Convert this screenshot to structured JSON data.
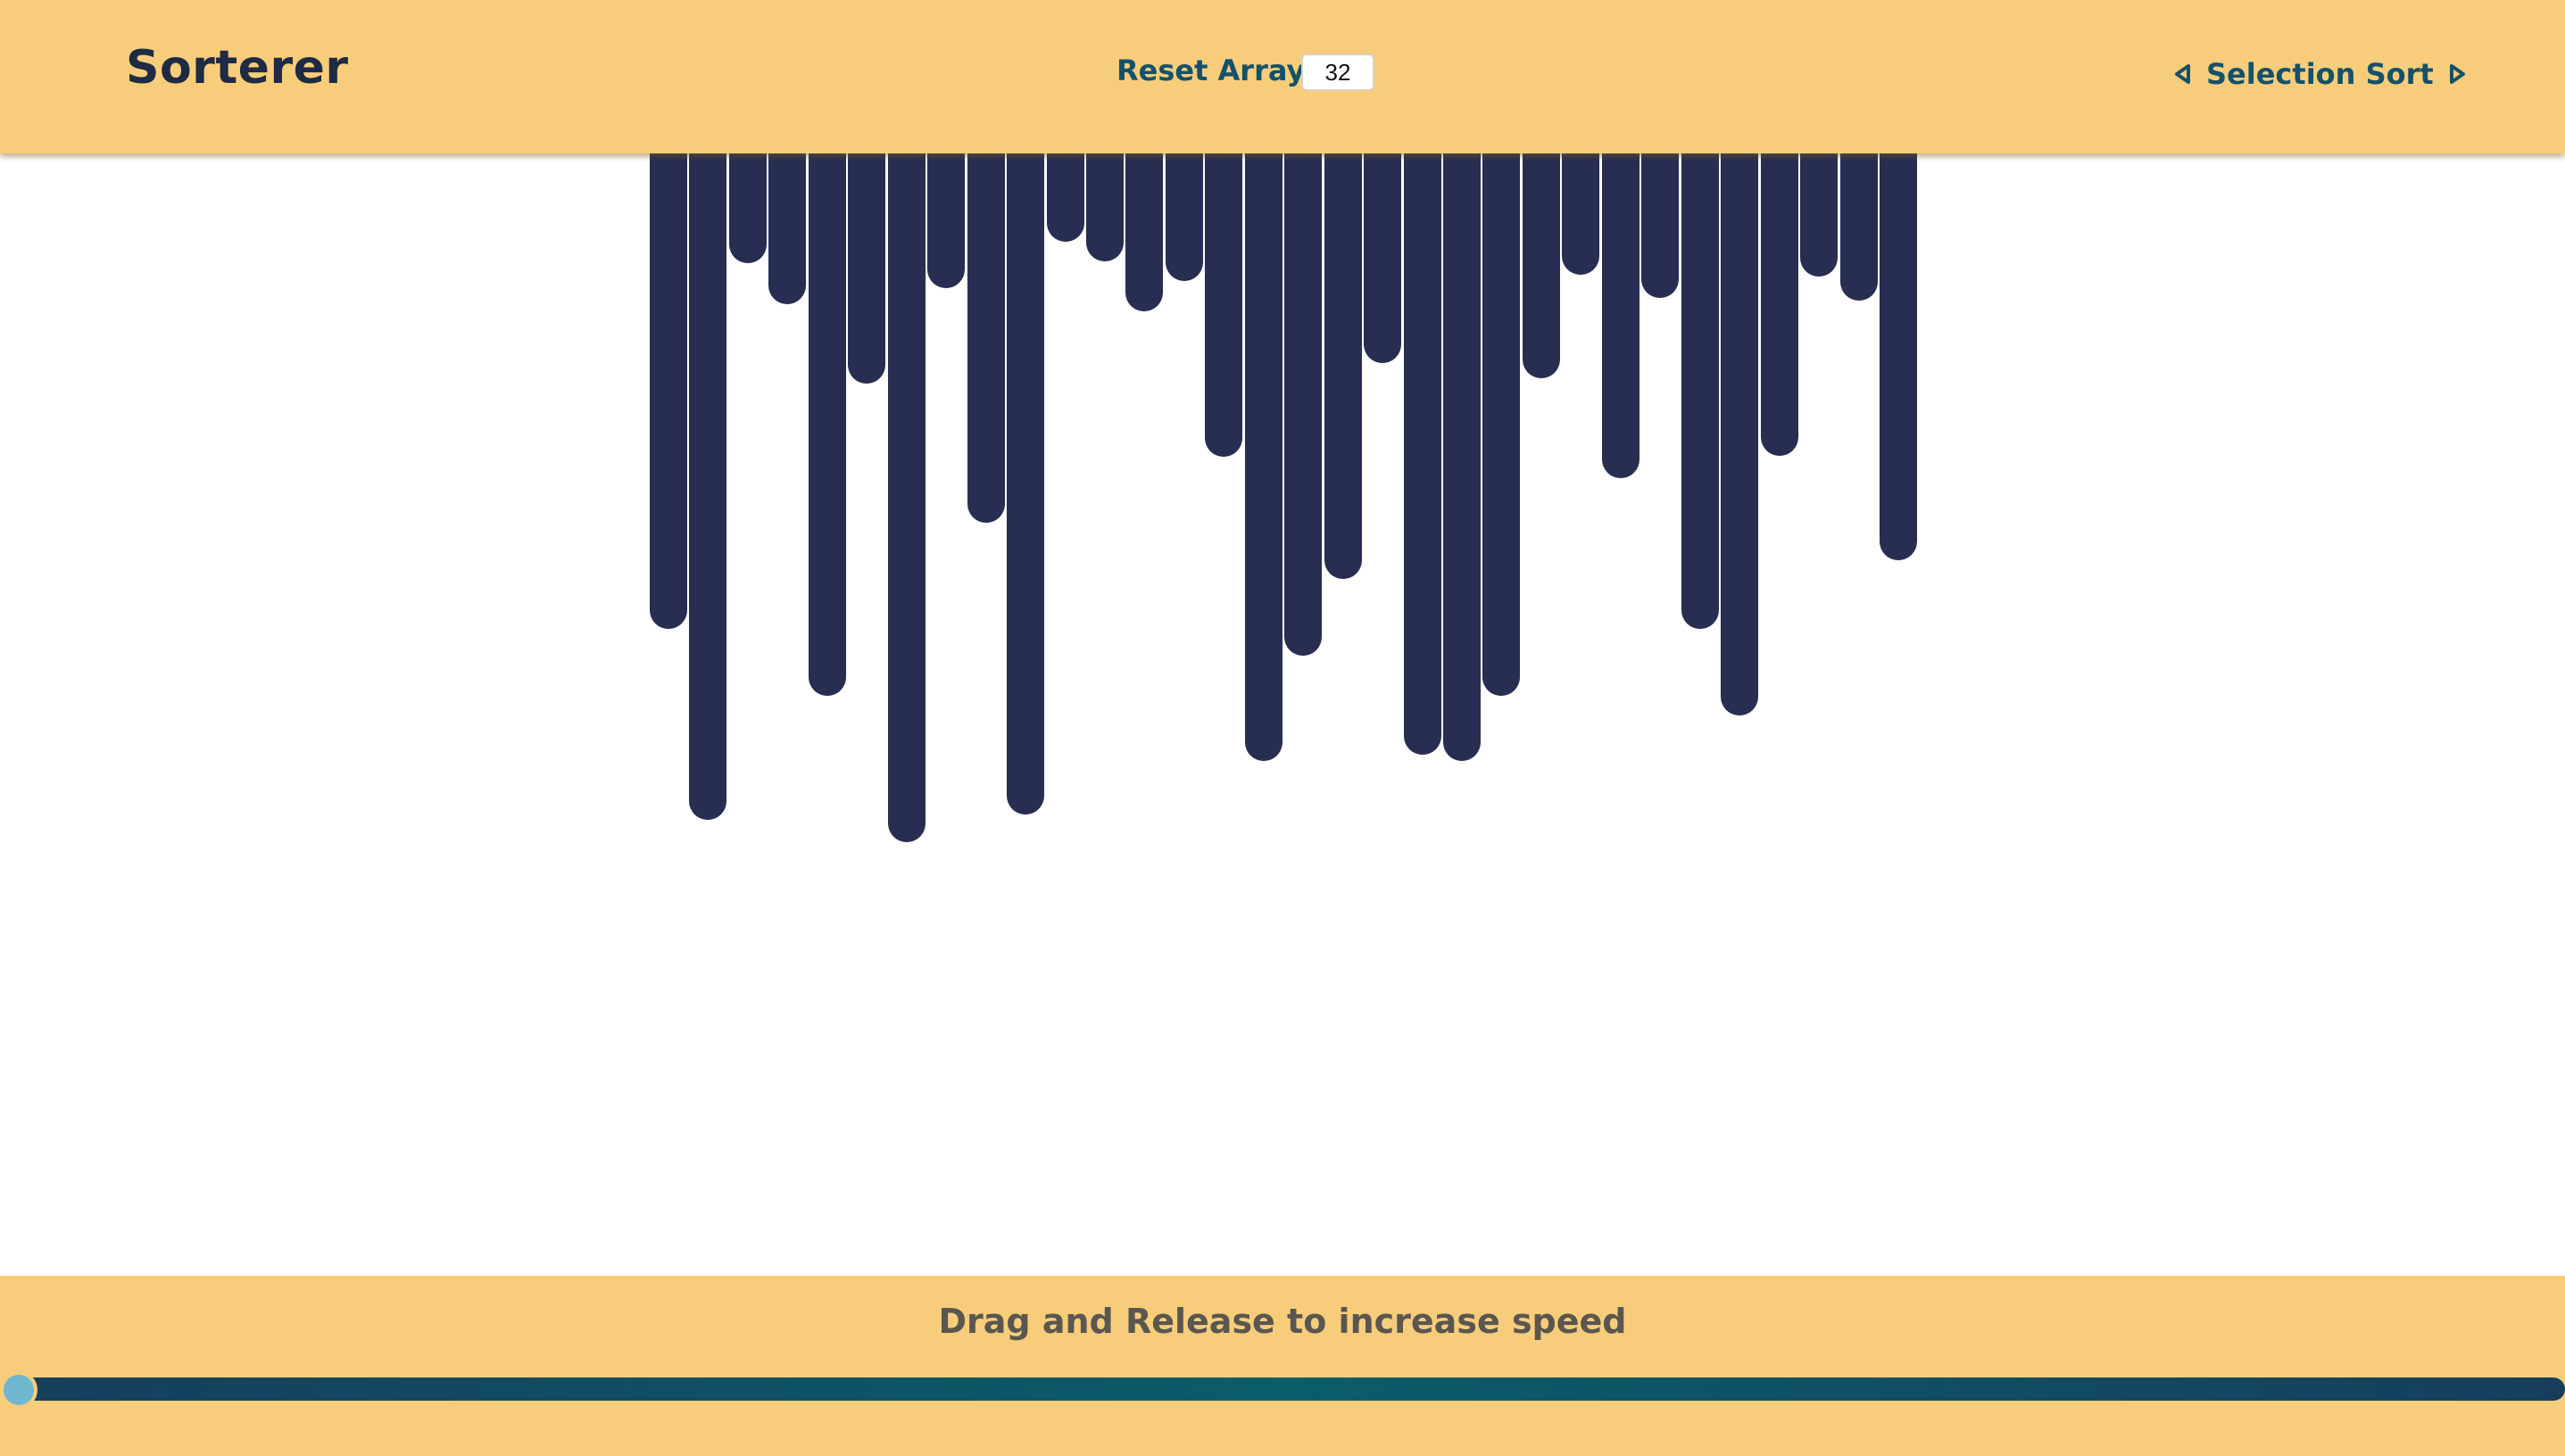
{
  "header": {
    "title": "Sorterer",
    "reset_label": "Reset Array",
    "array_size": "32",
    "algorithm": "Selection Sort",
    "prev_icon": "triangle-left-icon",
    "next_icon": "triangle-right-icon"
  },
  "array": {
    "bar_count": 32,
    "bar_color": "#272e51",
    "values": [
      533,
      747,
      123,
      169,
      608,
      258,
      772,
      151,
      414,
      741,
      99,
      121,
      177,
      143,
      340,
      681,
      563,
      477,
      235,
      674,
      681,
      608,
      252,
      136,
      364,
      162,
      533,
      630,
      339,
      138,
      165,
      456
    ]
  },
  "footer": {
    "speed_label": "Drag and Release to increase speed",
    "speed_level": 0
  },
  "colors": {
    "accent": "#f7cd7b",
    "text_primary": "#1f2a44",
    "link": "#14516b",
    "slider_thumb": "#70b7d0"
  }
}
